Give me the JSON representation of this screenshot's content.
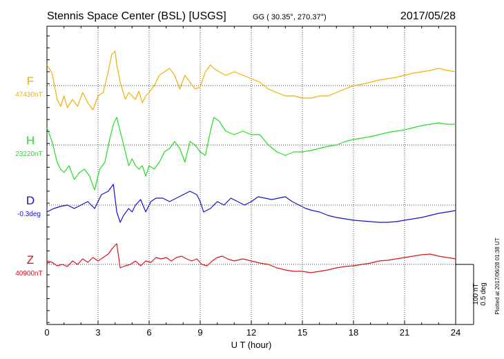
{
  "header": {
    "station": "Stennis Space Center (BSL)  [USGS]",
    "coords": "GG ( 30.35°, 270.37°)",
    "date": "2017/05/28"
  },
  "axis": {
    "xlabel": "U T (hour)",
    "ticks": [
      "0",
      "3",
      "6",
      "9",
      "12",
      "15",
      "18",
      "21",
      "24"
    ]
  },
  "scale_bar": {
    "nt": "100 nT",
    "deg": "0.5 deg"
  },
  "plotted": "Plotted at 2017/06/28 01:38 UT",
  "chart_data": {
    "type": "line",
    "xlabel": "U T (hour)",
    "xlim": [
      0,
      24
    ],
    "grid": true,
    "series": [
      {
        "name": "F",
        "baseline": "47430nT",
        "color": "#f0b000",
        "x": [
          0,
          0.3,
          0.6,
          0.8,
          1.0,
          1.2,
          1.5,
          1.8,
          2.1,
          2.4,
          2.7,
          3.0,
          3.3,
          3.6,
          3.8,
          4.0,
          4.1,
          4.3,
          4.6,
          4.8,
          5.0,
          5.2,
          5.4,
          5.6,
          5.8,
          6.0,
          6.3,
          6.6,
          6.9,
          7.2,
          7.5,
          7.8,
          8.1,
          8.4,
          8.7,
          9.0,
          9.3,
          9.6,
          9.8,
          10.1,
          10.5,
          11.0,
          11.5,
          12.0,
          12.5,
          13.0,
          13.5,
          14.0,
          14.5,
          15.0,
          15.5,
          16.0,
          16.5,
          17.0,
          17.5,
          18.0,
          18.5,
          19.0,
          19.5,
          20.0,
          20.5,
          21.0,
          21.5,
          22.0,
          22.5,
          23.0,
          23.5,
          24.0
        ],
        "y": [
          30,
          18,
          -20,
          -30,
          -15,
          -32,
          -20,
          -30,
          -10,
          -25,
          -35,
          -15,
          -10,
          20,
          45,
          50,
          30,
          5,
          -20,
          -10,
          -15,
          -20,
          -8,
          -25,
          -15,
          -10,
          0,
          15,
          20,
          25,
          15,
          -5,
          15,
          5,
          -5,
          -2,
          20,
          30,
          25,
          20,
          15,
          20,
          15,
          10,
          5,
          -5,
          -10,
          -15,
          -15,
          -18,
          -18,
          -15,
          -15,
          -10,
          -5,
          0,
          2,
          5,
          8,
          10,
          12,
          15,
          18,
          20,
          22,
          25,
          22,
          20
        ]
      },
      {
        "name": "H",
        "baseline": "23220nT",
        "color": "#22dd22",
        "x": [
          0,
          0.3,
          0.6,
          0.8,
          1.0,
          1.3,
          1.6,
          1.9,
          2.2,
          2.5,
          2.8,
          3.1,
          3.4,
          3.7,
          3.9,
          4.1,
          4.3,
          4.6,
          4.8,
          5.0,
          5.2,
          5.4,
          5.6,
          5.8,
          6.0,
          6.3,
          6.6,
          6.9,
          7.2,
          7.5,
          7.8,
          8.1,
          8.4,
          8.7,
          9.0,
          9.3,
          9.6,
          9.8,
          10.1,
          10.5,
          11.0,
          11.5,
          12.0,
          12.5,
          13.0,
          13.5,
          14.0,
          14.5,
          15.0,
          15.5,
          16.0,
          16.5,
          17.0,
          17.5,
          18.0,
          18.5,
          19.0,
          19.5,
          20.0,
          20.5,
          21.0,
          21.5,
          22.0,
          22.5,
          23.0,
          23.5,
          24.0
        ],
        "y": [
          25,
          5,
          -25,
          -35,
          -40,
          -30,
          -50,
          -40,
          -35,
          -45,
          -65,
          -35,
          -25,
          10,
          30,
          40,
          20,
          -10,
          -30,
          -20,
          -30,
          -35,
          -30,
          -45,
          -30,
          -35,
          -25,
          -10,
          -5,
          5,
          -5,
          -25,
          5,
          0,
          -10,
          -15,
          20,
          40,
          35,
          20,
          15,
          20,
          15,
          15,
          0,
          -10,
          -15,
          -10,
          -10,
          -8,
          -5,
          -2,
          0,
          5,
          8,
          10,
          12,
          15,
          18,
          20,
          22,
          25,
          28,
          30,
          32,
          30,
          30
        ]
      },
      {
        "name": "D",
        "baseline": "-0.3deg",
        "color": "#1010cc",
        "x": [
          0,
          0.4,
          0.8,
          1.2,
          1.6,
          2.0,
          2.4,
          2.8,
          3.2,
          3.6,
          3.9,
          4.1,
          4.3,
          4.5,
          4.8,
          5.0,
          5.2,
          5.5,
          5.8,
          6.1,
          6.4,
          6.8,
          7.2,
          7.6,
          8.0,
          8.4,
          8.8,
          9.0,
          9.2,
          9.6,
          10.0,
          10.4,
          10.8,
          11.2,
          11.6,
          12.0,
          12.4,
          12.8,
          13.2,
          13.6,
          14.0,
          14.4,
          14.8,
          15.2,
          15.6,
          16.0,
          16.5,
          17.0,
          17.5,
          18.0,
          18.5,
          19.0,
          19.5,
          20.0,
          20.5,
          21.0,
          21.5,
          22.0,
          22.5,
          23.0,
          23.5,
          24.0
        ],
        "y": [
          -10,
          -5,
          -2,
          0,
          -5,
          0,
          5,
          -5,
          15,
          20,
          30,
          -10,
          -25,
          -15,
          -5,
          -10,
          0,
          8,
          -10,
          5,
          10,
          10,
          5,
          10,
          15,
          20,
          15,
          5,
          -10,
          -5,
          5,
          0,
          10,
          5,
          0,
          5,
          12,
          10,
          8,
          10,
          12,
          5,
          0,
          -5,
          -8,
          -10,
          -15,
          -18,
          -20,
          -22,
          -23,
          -24,
          -25,
          -25,
          -24,
          -22,
          -20,
          -18,
          -15,
          -12,
          -10,
          -8
        ]
      },
      {
        "name": "Z",
        "baseline": "40900nT",
        "color": "#dd1111",
        "x": [
          0,
          0.3,
          0.6,
          0.9,
          1.2,
          1.5,
          1.8,
          2.1,
          2.4,
          2.7,
          3.0,
          3.3,
          3.6,
          3.9,
          4.1,
          4.3,
          4.6,
          4.9,
          5.2,
          5.5,
          5.8,
          6.1,
          6.4,
          6.7,
          7.0,
          7.3,
          7.6,
          7.9,
          8.2,
          8.5,
          8.8,
          9.1,
          9.4,
          9.7,
          10.0,
          10.3,
          10.6,
          11.0,
          11.5,
          12.0,
          12.5,
          13.0,
          13.5,
          14.0,
          14.5,
          15.0,
          15.5,
          16.0,
          16.5,
          17.0,
          17.5,
          18.0,
          18.5,
          19.0,
          19.5,
          20.0,
          20.5,
          21.0,
          21.5,
          22.0,
          22.5,
          23.0,
          23.5,
          24.0
        ],
        "y": [
          5,
          3,
          -2,
          0,
          -3,
          5,
          0,
          8,
          3,
          10,
          5,
          10,
          15,
          25,
          30,
          -5,
          -2,
          0,
          5,
          -2,
          5,
          3,
          10,
          8,
          10,
          5,
          10,
          12,
          8,
          5,
          8,
          0,
          -2,
          5,
          10,
          12,
          8,
          5,
          8,
          5,
          2,
          0,
          -5,
          -8,
          -10,
          -10,
          -12,
          -10,
          -8,
          -5,
          -3,
          -2,
          0,
          2,
          5,
          6,
          8,
          10,
          12,
          14,
          15,
          12,
          10,
          8
        ]
      }
    ]
  }
}
